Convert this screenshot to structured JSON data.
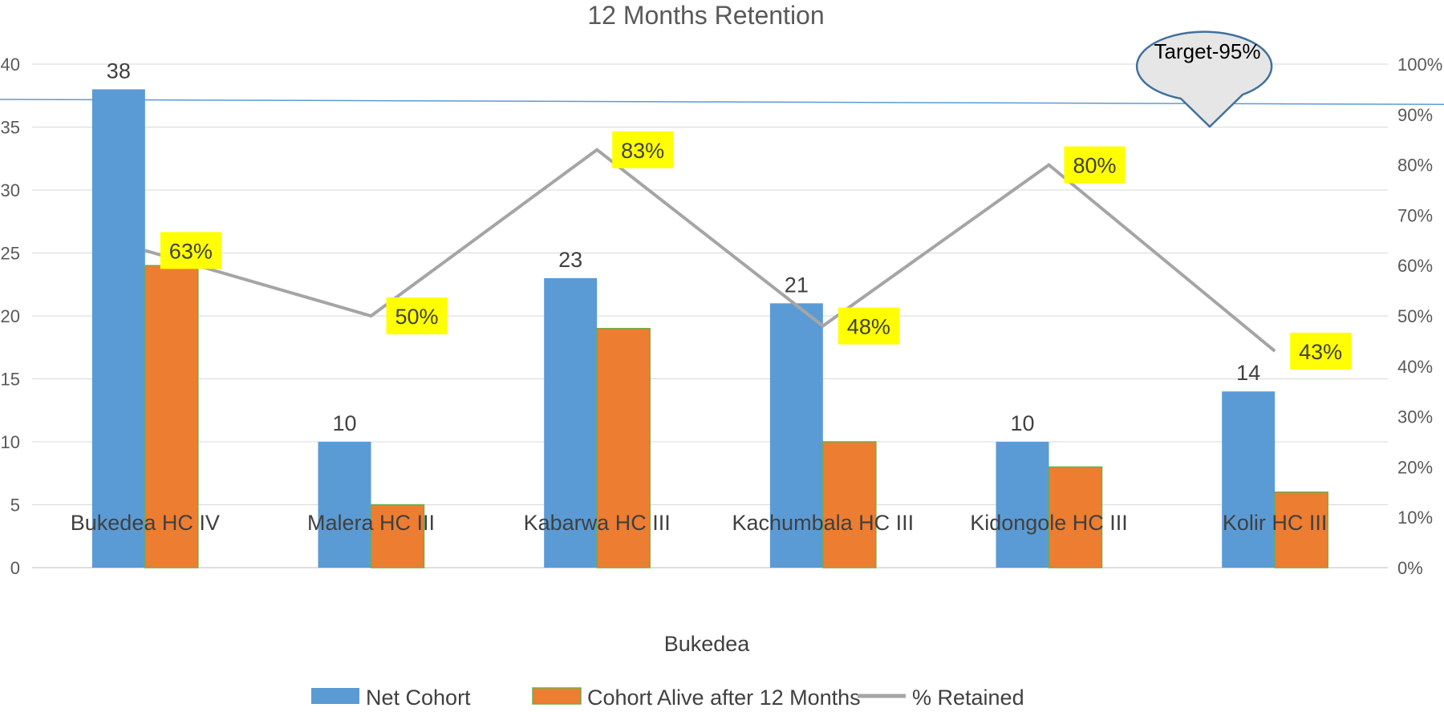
{
  "chart_data": {
    "type": "bar",
    "title": "12 Months Retention",
    "group_label": "Bukedea",
    "categories": [
      "Bukedea HC IV",
      "Malera HC III",
      "Kabarwa HC III",
      "Kachumbala HC III",
      "Kidongole HC III",
      "Kolir HC III"
    ],
    "series": [
      {
        "name": "Net Cohort",
        "type": "bar",
        "axis": "left",
        "color": "#5B9BD5",
        "values": [
          38,
          10,
          23,
          21,
          10,
          14
        ],
        "labels": [
          "38",
          "10",
          "23",
          "21",
          "10",
          "14"
        ]
      },
      {
        "name": "Cohort Alive after 12 Months",
        "type": "bar",
        "axis": "left",
        "color": "#ED7D31",
        "values": [
          24,
          5,
          19,
          10,
          8,
          6
        ]
      },
      {
        "name": "% Retained",
        "type": "line",
        "axis": "right",
        "color": "#A5A5A5",
        "values": [
          63,
          50,
          83,
          48,
          80,
          43
        ],
        "labels": [
          "63%",
          "50%",
          "83%",
          "48%",
          "80%",
          "43%"
        ]
      }
    ],
    "y_left": {
      "min": 0,
      "max": 40,
      "ticks": [
        "0",
        "5",
        "10",
        "15",
        "20",
        "25",
        "30",
        "35",
        "40"
      ]
    },
    "y_right": {
      "min": 0,
      "max": 100,
      "ticks": [
        "0%",
        "10%",
        "20%",
        "30%",
        "40%",
        "50%",
        "60%",
        "70%",
        "80%",
        "90%",
        "100%"
      ]
    },
    "target": {
      "label": "Target-95%",
      "value_start": 93,
      "value_end": 92,
      "color": "#5B9BD5"
    },
    "grid": true,
    "legend_position": "bottom",
    "label_highlight_color": "#FFFF00"
  }
}
